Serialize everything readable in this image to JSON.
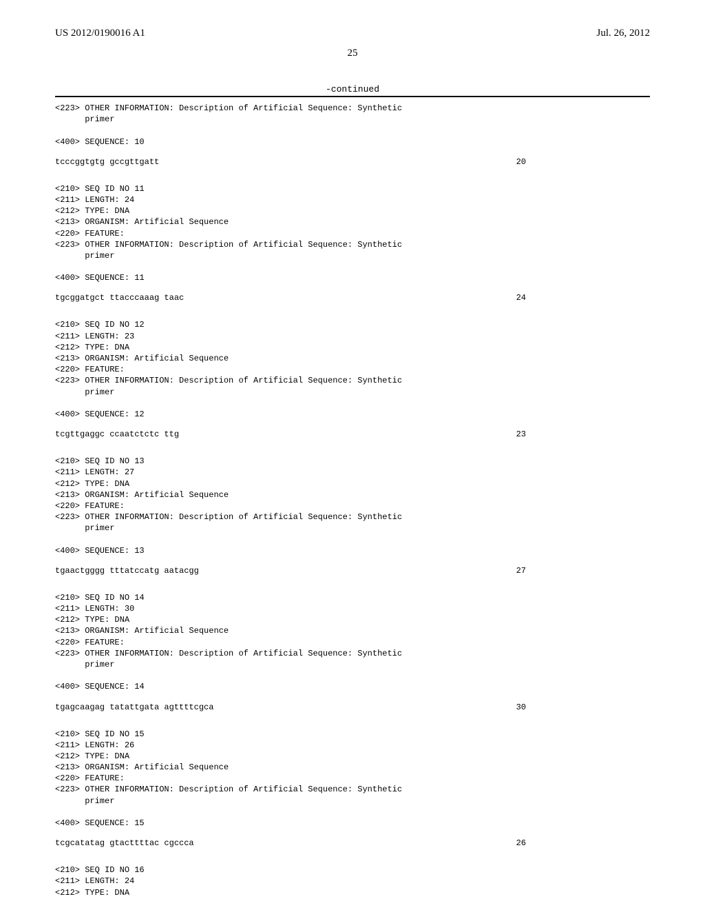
{
  "header": {
    "left": "US 2012/0190016 A1",
    "right": "Jul. 26, 2012"
  },
  "page_number": "25",
  "continued": "-continued",
  "entries": [
    {
      "pre_lines": [
        "<223> OTHER INFORMATION: Description of Artificial Sequence: Synthetic",
        "      primer",
        "",
        "<400> SEQUENCE: 10"
      ],
      "sequence": "tcccggtgtg gccgttgatt",
      "length": "20"
    },
    {
      "pre_lines": [
        "<210> SEQ ID NO 11",
        "<211> LENGTH: 24",
        "<212> TYPE: DNA",
        "<213> ORGANISM: Artificial Sequence",
        "<220> FEATURE:",
        "<223> OTHER INFORMATION: Description of Artificial Sequence: Synthetic",
        "      primer",
        "",
        "<400> SEQUENCE: 11"
      ],
      "sequence": "tgcggatgct ttacccaaag taac",
      "length": "24"
    },
    {
      "pre_lines": [
        "<210> SEQ ID NO 12",
        "<211> LENGTH: 23",
        "<212> TYPE: DNA",
        "<213> ORGANISM: Artificial Sequence",
        "<220> FEATURE:",
        "<223> OTHER INFORMATION: Description of Artificial Sequence: Synthetic",
        "      primer",
        "",
        "<400> SEQUENCE: 12"
      ],
      "sequence": "tcgttgaggc ccaatctctc ttg",
      "length": "23"
    },
    {
      "pre_lines": [
        "<210> SEQ ID NO 13",
        "<211> LENGTH: 27",
        "<212> TYPE: DNA",
        "<213> ORGANISM: Artificial Sequence",
        "<220> FEATURE:",
        "<223> OTHER INFORMATION: Description of Artificial Sequence: Synthetic",
        "      primer",
        "",
        "<400> SEQUENCE: 13"
      ],
      "sequence": "tgaactgggg tttatccatg aatacgg",
      "length": "27"
    },
    {
      "pre_lines": [
        "<210> SEQ ID NO 14",
        "<211> LENGTH: 30",
        "<212> TYPE: DNA",
        "<213> ORGANISM: Artificial Sequence",
        "<220> FEATURE:",
        "<223> OTHER INFORMATION: Description of Artificial Sequence: Synthetic",
        "      primer",
        "",
        "<400> SEQUENCE: 14"
      ],
      "sequence": "tgagcaagag tatattgata agttttcgca",
      "length": "30"
    },
    {
      "pre_lines": [
        "<210> SEQ ID NO 15",
        "<211> LENGTH: 26",
        "<212> TYPE: DNA",
        "<213> ORGANISM: Artificial Sequence",
        "<220> FEATURE:",
        "<223> OTHER INFORMATION: Description of Artificial Sequence: Synthetic",
        "      primer",
        "",
        "<400> SEQUENCE: 15"
      ],
      "sequence": "tcgcatatag gtacttttac cgccca",
      "length": "26"
    },
    {
      "pre_lines": [
        "<210> SEQ ID NO 16",
        "<211> LENGTH: 24",
        "<212> TYPE: DNA"
      ],
      "sequence": null,
      "length": null
    }
  ]
}
